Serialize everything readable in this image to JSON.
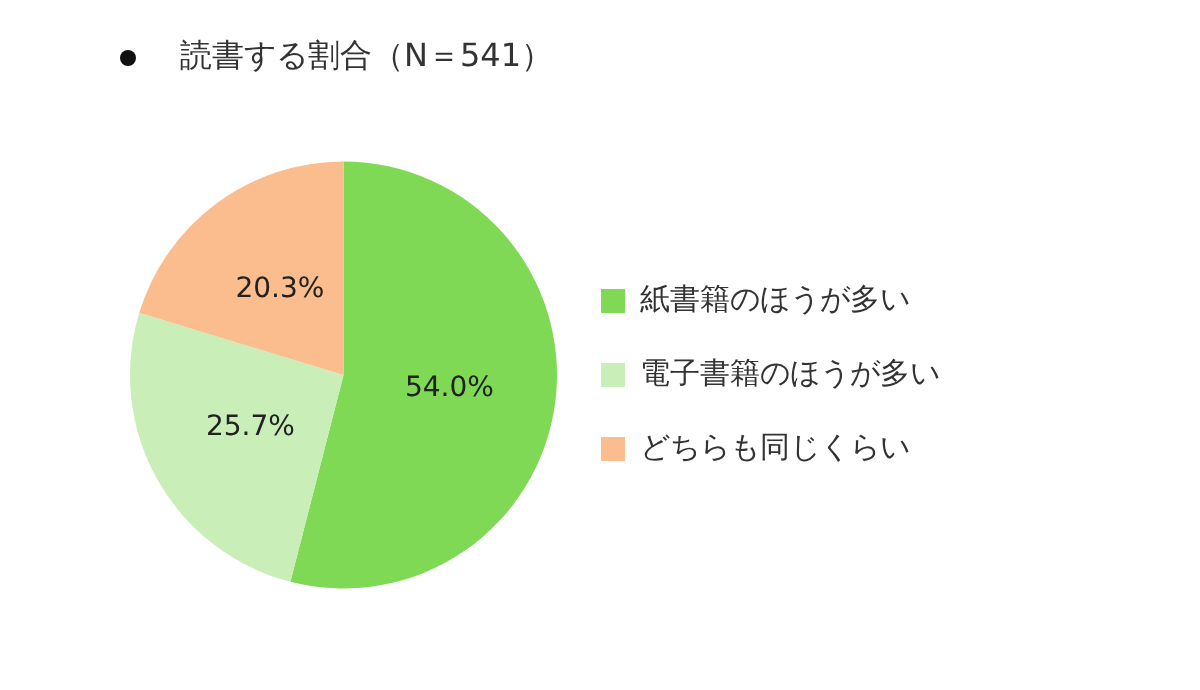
{
  "chart_data": {
    "type": "pie",
    "title": "読書する割合（N＝541）",
    "categories": [
      "紙書籍のほうが多い",
      "電子書籍のほうが多い",
      "どちらも同じくらい"
    ],
    "values": [
      54.0,
      25.7,
      20.3
    ],
    "colors": [
      "#80d955",
      "#c9eeb8",
      "#fbbd8d"
    ],
    "value_labels": [
      "54.0%",
      "25.7%",
      "20.3%"
    ],
    "legend": "right"
  }
}
